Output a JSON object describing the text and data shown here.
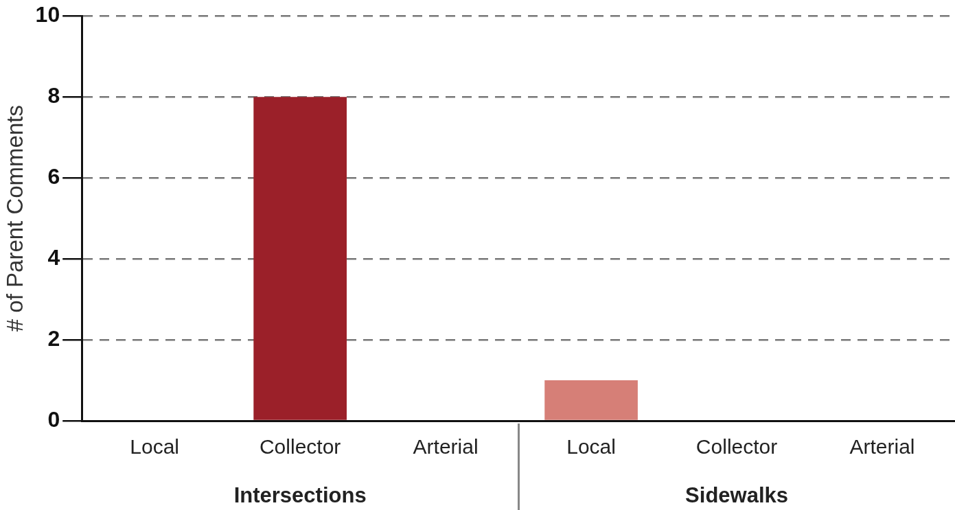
{
  "chart_data": {
    "type": "bar",
    "ylabel": "# of Parent Comments",
    "categories": [
      "Local",
      "Collector",
      "Arterial",
      "Local",
      "Collector",
      "Arterial"
    ],
    "values": [
      0,
      8,
      0,
      1,
      0,
      0
    ],
    "colors": [
      "#9b2029",
      "#9b2029",
      "#9b2029",
      "#d67f77",
      "#d67f77",
      "#d67f77"
    ],
    "annotations": [
      "Intersections",
      "Sidewalks"
    ],
    "ylim": [
      0,
      10
    ],
    "yticks": [
      0,
      2,
      4,
      6,
      8,
      10
    ],
    "grid": "y",
    "legend": false
  }
}
